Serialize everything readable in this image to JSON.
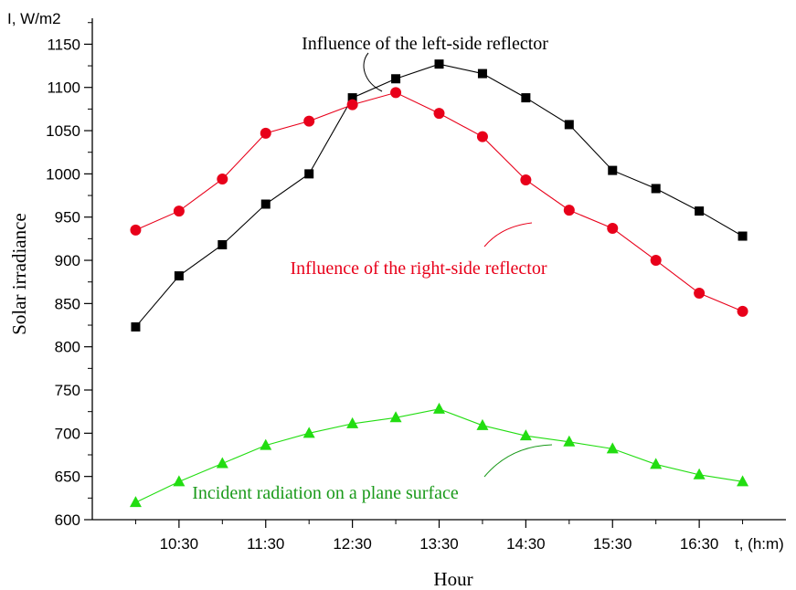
{
  "chart_data": {
    "type": "line",
    "xlabel": "Hour",
    "ylabel": "Solar irradiance",
    "y_unit_label": "I, W/m2",
    "x_unit_label": "t, (h:m)",
    "ylim": [
      600,
      1180
    ],
    "xlim": [
      9.5,
      17.5
    ],
    "yticks": [
      600,
      650,
      700,
      750,
      800,
      850,
      900,
      950,
      1000,
      1050,
      1100,
      1150
    ],
    "xticks": [
      {
        "value": 10.5,
        "label": "10:30"
      },
      {
        "value": 11.5,
        "label": "11:30"
      },
      {
        "value": 12.5,
        "label": "12:30"
      },
      {
        "value": 13.5,
        "label": "13:30"
      },
      {
        "value": 14.5,
        "label": "14:30"
      },
      {
        "value": 15.5,
        "label": "15:30"
      },
      {
        "value": 16.5,
        "label": "16:30"
      }
    ],
    "grid": false,
    "x": [
      10.0,
      10.5,
      11.0,
      11.5,
      12.0,
      12.5,
      13.0,
      13.5,
      14.0,
      14.5,
      15.0,
      15.5,
      16.0,
      16.5,
      17.0
    ],
    "series": [
      {
        "key": "left",
        "color": "#000000",
        "marker": "square",
        "values": [
          823,
          882,
          918,
          965,
          1000,
          1088,
          1110,
          1127,
          1116,
          1088,
          1057,
          1004,
          983,
          957,
          928
        ]
      },
      {
        "key": "right",
        "color": "#e8001a",
        "marker": "circle",
        "values": [
          935,
          957,
          994,
          1047,
          1061,
          1080,
          1094,
          1070,
          1043,
          993,
          958,
          937,
          900,
          862,
          841
        ]
      },
      {
        "key": "incident",
        "color": "#22dd11",
        "marker": "triangle",
        "values": [
          620,
          644,
          665,
          686,
          700,
          711,
          718,
          728,
          709,
          697,
          690,
          682,
          664,
          652,
          644
        ]
      }
    ],
    "annotations": [
      {
        "key": "left",
        "text": "Influence of the left-side reflector",
        "color": "#000000",
        "placement": "top-center"
      },
      {
        "key": "right",
        "text": "Influence of the right-side reflector",
        "color": "#e8001a",
        "placement": "middle-center"
      },
      {
        "key": "incident",
        "text": "Incident radiation on a plane surface",
        "color": "#1a9a1a",
        "placement": "bottom-center"
      }
    ]
  }
}
